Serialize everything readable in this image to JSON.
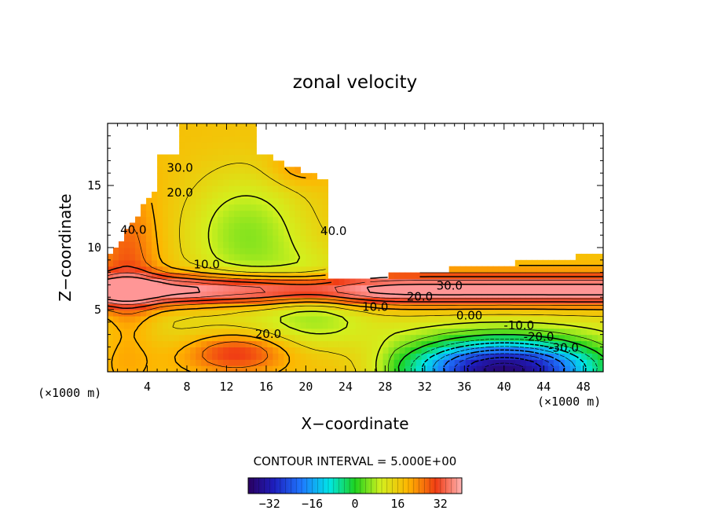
{
  "chart_data": {
    "type": "heatmap",
    "title": "zonal velocity",
    "xlabel": "X−coordinate",
    "ylabel": "Z−coordinate",
    "x_unit_left": "(×1000 m)",
    "x_unit_right": "(×1000 m)",
    "xlim": [
      0,
      50
    ],
    "ylim": [
      0,
      20
    ],
    "x_ticks": [
      "4",
      "8",
      "12",
      "16",
      "20",
      "24",
      "28",
      "32",
      "36",
      "40",
      "44",
      "48"
    ],
    "x_tick_values": [
      4,
      8,
      12,
      16,
      20,
      24,
      28,
      32,
      36,
      40,
      44,
      48
    ],
    "y_ticks": [
      "5",
      "10",
      "15"
    ],
    "y_tick_values": [
      5,
      10,
      15
    ],
    "contour_interval_text": "CONTOUR INTERVAL = 5.000E+00",
    "contour_interval": 5,
    "colorbar": {
      "min": -40,
      "max": 40,
      "ticks": [
        "−32",
        "−16",
        "0",
        "16",
        "32"
      ],
      "tick_values": [
        -32,
        -16,
        0,
        16,
        32
      ]
    },
    "contour_labels": [
      {
        "text": "30.0",
        "x": 7.3,
        "z": 16.4,
        "value": 30
      },
      {
        "text": "20.0",
        "x": 7.3,
        "z": 14.4,
        "value": 20
      },
      {
        "text": "40.0",
        "x": 2.6,
        "z": 11.4,
        "value": 40
      },
      {
        "text": "10.0",
        "x": 10.0,
        "z": 8.6,
        "value": 10
      },
      {
        "text": "40.0",
        "x": 22.8,
        "z": 11.3,
        "value": 40
      },
      {
        "text": "30.0",
        "x": 34.5,
        "z": 6.9,
        "value": 30
      },
      {
        "text": "20.0",
        "x": 31.5,
        "z": 6.0,
        "value": 20
      },
      {
        "text": "10.0",
        "x": 27.0,
        "z": 5.2,
        "value": 10
      },
      {
        "text": "20.0",
        "x": 16.2,
        "z": 3.0,
        "value": 20
      },
      {
        "text": "0.00",
        "x": 36.5,
        "z": 4.5,
        "value": 0
      },
      {
        "text": "-10.0",
        "x": 41.5,
        "z": 3.7,
        "value": -10
      },
      {
        "text": "-20.0",
        "x": 43.5,
        "z": 2.8,
        "value": -20
      },
      {
        "text": "-30.0",
        "x": 46.0,
        "z": 1.9,
        "value": -30
      }
    ],
    "summary_values": [
      {
        "region": "upper-left red band",
        "approx": 40
      },
      {
        "region": "central green core",
        "approx": 5
      },
      {
        "region": "low-level jet",
        "approx": 30
      },
      {
        "region": "lower-right reversed flow minimum",
        "approx": -35
      }
    ]
  }
}
